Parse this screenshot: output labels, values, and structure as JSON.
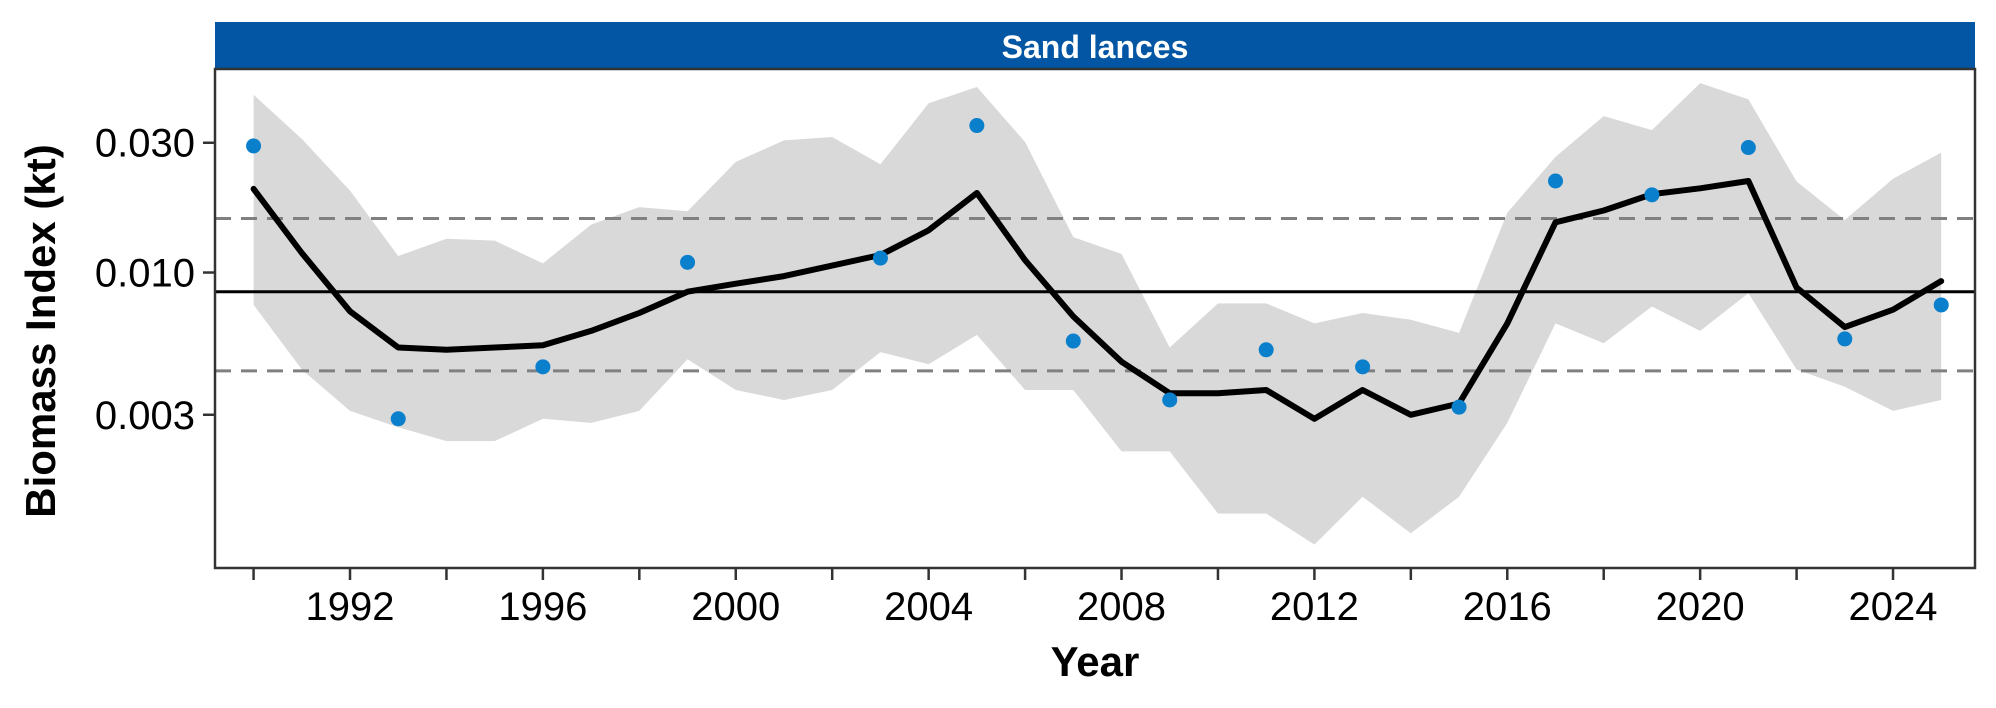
{
  "chart_data": {
    "type": "line",
    "title": "Sand lances",
    "xlabel": "Year",
    "ylabel": "Biomass Index (kt)",
    "y_scale": "log",
    "xlim": [
      1989.2,
      2025.7
    ],
    "ylim": [
      0.00082,
      0.056
    ],
    "x_ticks": [
      1992,
      1996,
      2000,
      2004,
      2008,
      2012,
      2016,
      2020,
      2024
    ],
    "x_tick_labels": [
      "1992",
      "1996",
      "2000",
      "2004",
      "2008",
      "2012",
      "2016",
      "2020",
      "2024"
    ],
    "y_ticks": [
      0.003,
      0.01,
      0.03
    ],
    "y_tick_labels": [
      "0.003",
      "0.010",
      "0.030"
    ],
    "grid": false,
    "strip_color": "#0356A3",
    "point_color": "#0A7FCB",
    "ribbon_color": "#D9D9D9",
    "line_color": "#000000",
    "reference_line_color": "#000000",
    "dashed_line_color": "#808080",
    "mean_line": 0.0085,
    "bound_lines": [
      0.0158,
      0.00435
    ],
    "series": [
      {
        "role": "trend",
        "x": [
          1990,
          1991,
          1992,
          1993,
          1994,
          1995,
          1996,
          1997,
          1998,
          1999,
          2000,
          2001,
          2002,
          2003,
          2004,
          2005,
          2006,
          2007,
          2008,
          2009,
          2010,
          2011,
          2012,
          2013,
          2014,
          2015,
          2016,
          2017,
          2018,
          2019,
          2020,
          2021,
          2022,
          2023,
          2024,
          2025
        ],
        "y": [
          0.0203,
          0.0118,
          0.0072,
          0.0053,
          0.0052,
          0.0053,
          0.0054,
          0.0061,
          0.0071,
          0.0085,
          0.0091,
          0.0097,
          0.0106,
          0.0116,
          0.0143,
          0.0196,
          0.0111,
          0.0069,
          0.0047,
          0.0036,
          0.0036,
          0.0037,
          0.0029,
          0.0037,
          0.003,
          0.0033,
          0.0065,
          0.0153,
          0.0169,
          0.0194,
          0.0204,
          0.0217,
          0.0088,
          0.0063,
          0.0073,
          0.0093
        ]
      },
      {
        "role": "confidence_upper",
        "x": [
          1990,
          1991,
          1992,
          1993,
          1994,
          1995,
          1996,
          1997,
          1998,
          1999,
          2000,
          2001,
          2002,
          2003,
          2004,
          2005,
          2006,
          2007,
          2008,
          2009,
          2010,
          2011,
          2012,
          2013,
          2014,
          2015,
          2016,
          2017,
          2018,
          2019,
          2020,
          2021,
          2022,
          2023,
          2024,
          2025
        ],
        "y": [
          0.045,
          0.031,
          0.02,
          0.0115,
          0.0133,
          0.0131,
          0.0108,
          0.015,
          0.0174,
          0.0168,
          0.0255,
          0.0306,
          0.0315,
          0.025,
          0.0419,
          0.0481,
          0.0302,
          0.0135,
          0.0117,
          0.0053,
          0.0077,
          0.0077,
          0.0065,
          0.0071,
          0.0067,
          0.006,
          0.0166,
          0.0266,
          0.0376,
          0.0334,
          0.0497,
          0.0433,
          0.0216,
          0.0156,
          0.0221,
          0.0276
        ]
      },
      {
        "role": "confidence_lower",
        "x": [
          1990,
          1991,
          1992,
          1993,
          1994,
          1995,
          1996,
          1997,
          1998,
          1999,
          2000,
          2001,
          2002,
          2003,
          2004,
          2005,
          2006,
          2007,
          2008,
          2009,
          2010,
          2011,
          2012,
          2013,
          2014,
          2015,
          2016,
          2017,
          2018,
          2019,
          2020,
          2021,
          2022,
          2023,
          2024,
          2025
        ],
        "y": [
          0.0076,
          0.0044,
          0.0031,
          0.0027,
          0.0024,
          0.0024,
          0.0029,
          0.0028,
          0.0031,
          0.0048,
          0.0037,
          0.0034,
          0.0037,
          0.0051,
          0.0046,
          0.0059,
          0.0037,
          0.0037,
          0.0022,
          0.0022,
          0.0013,
          0.0013,
          0.001,
          0.0015,
          0.0011,
          0.0015,
          0.0028,
          0.0065,
          0.0055,
          0.0075,
          0.0061,
          0.0084,
          0.0044,
          0.0038,
          0.0031,
          0.0034
        ]
      },
      {
        "role": "observed",
        "x": [
          1990,
          1993,
          1996,
          1999,
          2003,
          2005,
          2007,
          2009,
          2011,
          2013,
          2015,
          2017,
          2019,
          2021,
          2023,
          2025
        ],
        "y": [
          0.0292,
          0.0029,
          0.0045,
          0.0109,
          0.0113,
          0.0347,
          0.0056,
          0.0034,
          0.0052,
          0.0045,
          0.0032,
          0.0217,
          0.0193,
          0.0288,
          0.0057,
          0.0076
        ]
      }
    ]
  }
}
